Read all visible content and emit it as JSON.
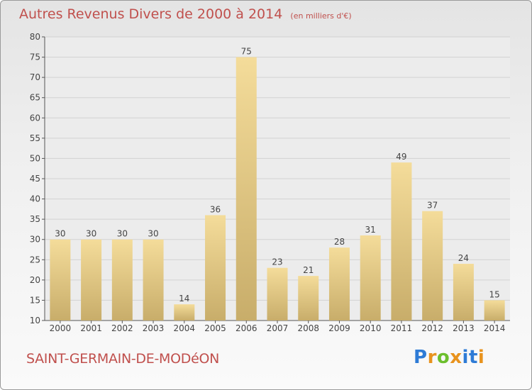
{
  "header": {
    "title": "Autres Revenus Divers de 2000 à 2014",
    "subtitle": "(en milliers d'€)"
  },
  "footer": {
    "place": "SAINT-GERMAIN-DE-MODéON",
    "logo_letters": [
      "P",
      "r",
      "o",
      "x",
      "i",
      "t",
      "i"
    ],
    "logo_colors": [
      "#2e7bd6",
      "#e8931e",
      "#6cbf2d",
      "#e8931e",
      "#2e7bd6",
      "#2e7bd6",
      "#e8931e"
    ]
  },
  "chart_data": {
    "type": "bar",
    "categories": [
      "2000",
      "2001",
      "2002",
      "2003",
      "2004",
      "2005",
      "2006",
      "2007",
      "2008",
      "2009",
      "2010",
      "2011",
      "2012",
      "2013",
      "2014"
    ],
    "values": [
      30,
      30,
      30,
      30,
      14,
      36,
      75,
      23,
      21,
      28,
      31,
      49,
      37,
      24,
      15
    ],
    "ylim": [
      10,
      80
    ],
    "yticks": [
      10,
      15,
      20,
      25,
      30,
      35,
      40,
      45,
      50,
      55,
      60,
      65,
      70,
      75,
      80
    ],
    "grid": true,
    "bar_color_top": "#f4dc9a",
    "bar_color_bottom": "#c8ad6a"
  }
}
